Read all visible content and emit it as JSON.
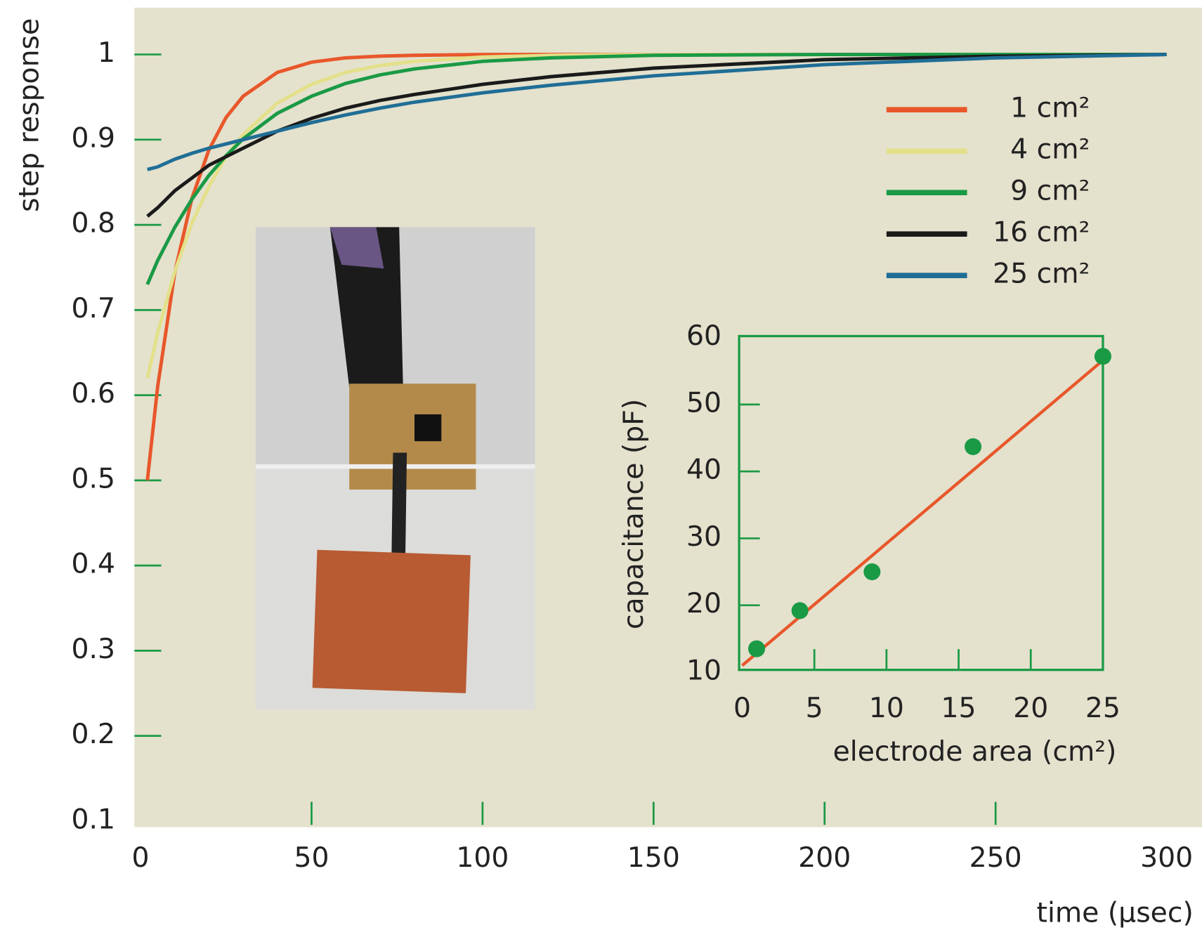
{
  "chart_data": [
    {
      "type": "line",
      "y_label": "step response",
      "x_label": "time (µsec)",
      "x": [
        2,
        5,
        10,
        15,
        20,
        25,
        30,
        40,
        50,
        60,
        70,
        80,
        100,
        120,
        150,
        200,
        250,
        300
      ],
      "series": [
        {
          "name": "1 cm²",
          "color": "#e8572a",
          "values": [
            0.5,
            0.61,
            0.744,
            0.831,
            0.888,
            0.926,
            0.951,
            0.979,
            0.991,
            0.996,
            0.998,
            0.999,
            1,
            1,
            1,
            1,
            1,
            1
          ]
        },
        {
          "name": "4 cm²",
          "color": "#e3e08a",
          "values": [
            0.62,
            0.673,
            0.745,
            0.802,
            0.845,
            0.88,
            0.906,
            0.943,
            0.965,
            0.979,
            0.987,
            0.992,
            0.997,
            0.999,
            1,
            1,
            1,
            1
          ]
        },
        {
          "name": "9 cm²",
          "color": "#1a9a45",
          "values": [
            0.73,
            0.758,
            0.797,
            0.83,
            0.858,
            0.881,
            0.901,
            0.931,
            0.951,
            0.966,
            0.976,
            0.983,
            0.992,
            0.996,
            0.999,
            1,
            1,
            1
          ]
        },
        {
          "name": "16 cm²",
          "color": "#1a1a1a",
          "values": [
            0.81,
            0.82,
            0.84,
            0.855,
            0.87,
            0.88,
            0.89,
            0.91,
            0.925,
            0.937,
            0.946,
            0.953,
            0.965,
            0.974,
            0.984,
            0.994,
            0.998,
            1
          ]
        },
        {
          "name": "25 cm²",
          "color": "#1f6e96",
          "values": [
            0.865,
            0.868,
            0.877,
            0.884,
            0.89,
            0.895,
            0.9,
            0.91,
            0.92,
            0.929,
            0.937,
            0.944,
            0.955,
            0.964,
            0.975,
            0.988,
            0.996,
            1
          ]
        }
      ],
      "xlim": [
        0,
        300
      ],
      "xticks": [
        0,
        50,
        100,
        150,
        200,
        250,
        300
      ],
      "ylim": [
        0.1,
        1.05
      ],
      "yticks": [
        0.1,
        0.2,
        0.3,
        0.4,
        0.5,
        0.6,
        0.7,
        0.8,
        0.9,
        1
      ],
      "legend": "upper right"
    },
    {
      "type": "scatter",
      "y_label": "capacitance (pF)",
      "x_label": "electrode area (cm²)",
      "x": [
        1,
        4,
        9,
        16,
        25
      ],
      "values": [
        13.5,
        19.2,
        25,
        43.7,
        57.2
      ],
      "color": "#1a9a45",
      "fit": {
        "x": [
          0,
          25
        ],
        "values": [
          11,
          56.6
        ],
        "color": "#e8572a"
      },
      "xlim": [
        0,
        25
      ],
      "xticks": [
        0,
        5,
        10,
        15,
        20,
        25
      ],
      "ylim": [
        10,
        60
      ],
      "yticks": [
        10,
        20,
        30,
        40,
        50,
        60
      ]
    }
  ]
}
